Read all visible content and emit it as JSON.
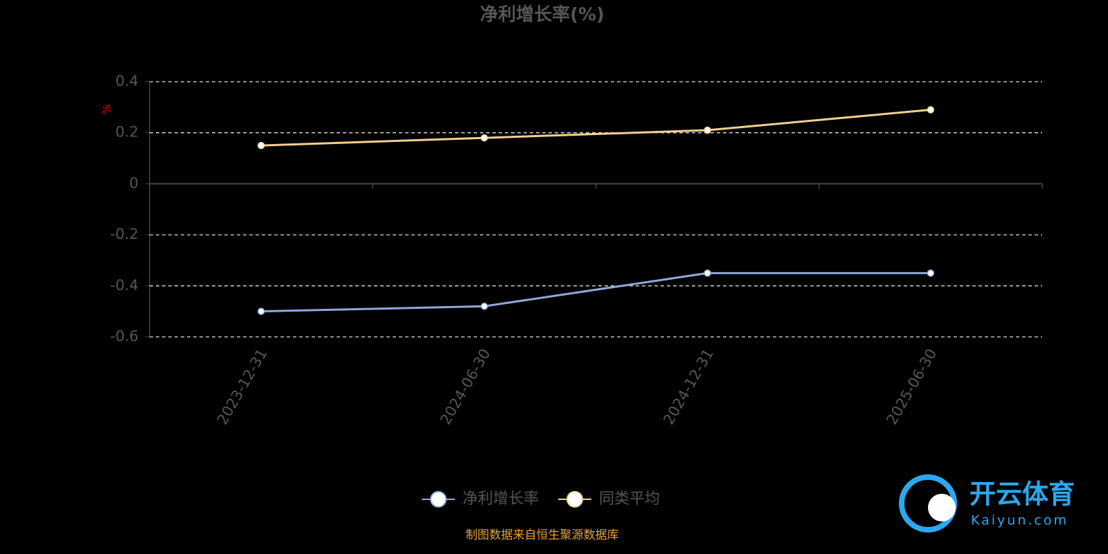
{
  "chart_data": {
    "type": "line",
    "title": "净利增长率(%)",
    "y_label": "%",
    "categories": [
      "2023-12-31",
      "2024-06-30",
      "2024-12-31",
      "2025-06-30"
    ],
    "series": [
      {
        "name": "净利增长率",
        "color": "#8fa8d8",
        "values": [
          -0.5,
          -0.48,
          -0.35,
          -0.35
        ]
      },
      {
        "name": "同类平均",
        "color": "#f5d08e",
        "values": [
          0.15,
          0.18,
          0.21,
          0.29
        ]
      }
    ],
    "ylim": [
      -0.6,
      0.4
    ],
    "yticks": [
      0.4,
      0.2,
      0,
      -0.2,
      -0.4,
      -0.6
    ],
    "grid": true,
    "legend": "bottom"
  },
  "source": "制图数据来自恒生聚源数据库",
  "watermark": {
    "name": "开云体育",
    "site": "Kaiyun.com"
  }
}
